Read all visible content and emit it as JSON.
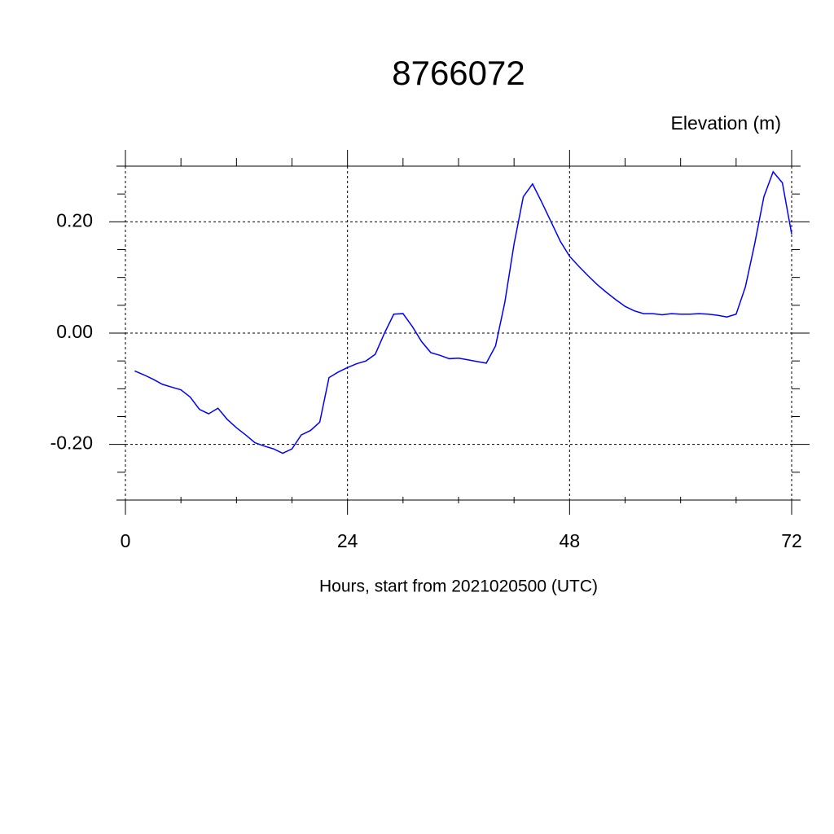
{
  "chart_data": {
    "type": "line",
    "title": "8766072",
    "ylabel": "Elevation (m)",
    "xlabel": "Hours, start from 2021020500 (UTC)",
    "x": [
      1,
      2,
      3,
      4,
      5,
      6,
      7,
      8,
      9,
      10,
      11,
      12,
      13,
      14,
      15,
      16,
      17,
      18,
      19,
      20,
      21,
      22,
      23,
      24,
      25,
      26,
      27,
      28,
      29,
      30,
      31,
      32,
      33,
      34,
      35,
      36,
      37,
      38,
      39,
      40,
      41,
      42,
      43,
      44,
      45,
      46,
      47,
      48,
      49,
      50,
      51,
      52,
      53,
      54,
      55,
      56,
      57,
      58,
      59,
      60,
      61,
      62,
      63,
      64,
      65,
      66,
      67,
      68,
      69,
      70,
      71,
      72
    ],
    "series": [
      {
        "color": "#0000ff",
        "values": [
          -0.068,
          -0.075,
          -0.083,
          -0.092,
          -0.097,
          -0.102,
          -0.115,
          -0.137,
          -0.145,
          -0.135,
          -0.155,
          -0.17,
          -0.183,
          -0.197,
          -0.203,
          -0.208,
          -0.216,
          -0.208,
          -0.183,
          -0.175,
          -0.16,
          -0.08,
          -0.07,
          -0.062,
          -0.055,
          -0.05,
          -0.038,
          0.0,
          0.034,
          0.035,
          0.012,
          -0.015,
          -0.035,
          -0.04,
          -0.046,
          -0.045,
          -0.048,
          -0.051,
          -0.054,
          -0.023,
          0.055,
          0.16,
          0.245,
          0.268,
          0.235,
          0.2,
          0.165,
          0.138,
          0.12,
          0.103,
          0.087,
          0.073,
          0.06,
          0.048,
          0.04,
          0.035,
          0.035,
          0.033,
          0.035,
          0.034,
          0.034,
          0.035,
          0.034,
          0.032,
          0.029,
          0.034,
          0.083,
          0.16,
          0.245,
          0.29,
          0.27,
          0.178
        ]
      }
    ],
    "xlim": [
      0,
      72
    ],
    "xticks": [
      0,
      24,
      48,
      72
    ],
    "xminorticks": [
      6,
      12,
      18,
      30,
      36,
      42,
      54,
      60,
      66
    ],
    "ylim": [
      -0.3,
      0.3
    ],
    "yticks": [
      {
        "value": -0.2,
        "label": "-0.20"
      },
      {
        "value": 0,
        "label": "0.00"
      },
      {
        "value": 0.2,
        "label": "0.20"
      }
    ],
    "yminorticks": [
      -0.3,
      -0.25,
      -0.15,
      -0.1,
      -0.05,
      0.05,
      0.1,
      0.15,
      0.25,
      0.3
    ],
    "grid": true
  }
}
